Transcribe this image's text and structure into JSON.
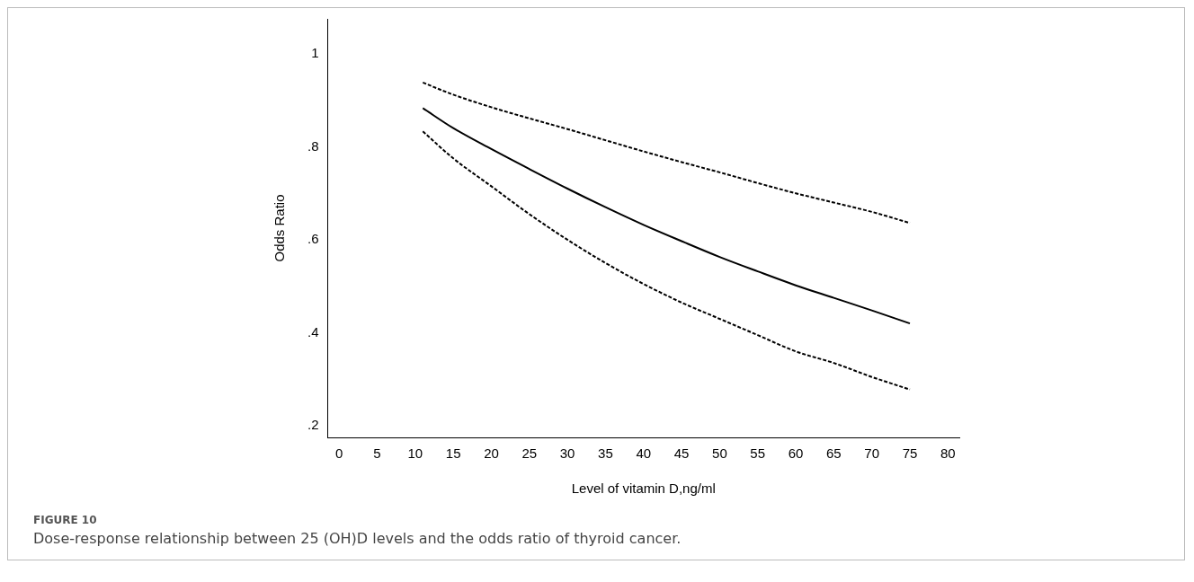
{
  "chart_data": {
    "type": "line",
    "title": "FIGURE 10",
    "subtitle": "Dose-response relationship between 25 (OH)D levels and the odds ratio of thyroid cancer.",
    "xlabel": "Level of vitamin D,ng/ml",
    "ylabel": "Odds Ratio",
    "x": [
      11,
      15,
      20,
      25,
      30,
      35,
      40,
      45,
      50,
      55,
      60,
      65,
      70,
      75
    ],
    "series": [
      {
        "color": "#000000",
        "line_style": "solid",
        "values": [
          0.883,
          0.84,
          0.795,
          0.752,
          0.71,
          0.67,
          0.632,
          0.597,
          0.563,
          0.532,
          0.502,
          0.475,
          0.448,
          0.42
        ]
      },
      {
        "color": "#000000",
        "line_style": "dashed",
        "values": [
          0.938,
          0.912,
          0.885,
          0.861,
          0.838,
          0.814,
          0.79,
          0.767,
          0.745,
          0.722,
          0.7,
          0.68,
          0.66,
          0.636
        ]
      },
      {
        "color": "#000000",
        "line_style": "dashed",
        "values": [
          0.833,
          0.775,
          0.715,
          0.655,
          0.6,
          0.55,
          0.505,
          0.465,
          0.43,
          0.395,
          0.36,
          0.335,
          0.305,
          0.278
        ]
      }
    ],
    "xlim": [
      -1.5,
      81.5
    ],
    "ylim": [
      0.175,
      1.075
    ],
    "xticks": [
      0,
      5,
      10,
      15,
      20,
      25,
      30,
      35,
      40,
      45,
      50,
      55,
      60,
      65,
      70,
      75,
      80
    ],
    "yticks": [
      {
        "value": 0.2,
        "label": ".2"
      },
      {
        "value": 0.4,
        "label": ".4"
      },
      {
        "value": 0.6,
        "label": ".6"
      },
      {
        "value": 0.8,
        "label": ".8"
      },
      1
    ],
    "grid": false,
    "legend": false
  }
}
